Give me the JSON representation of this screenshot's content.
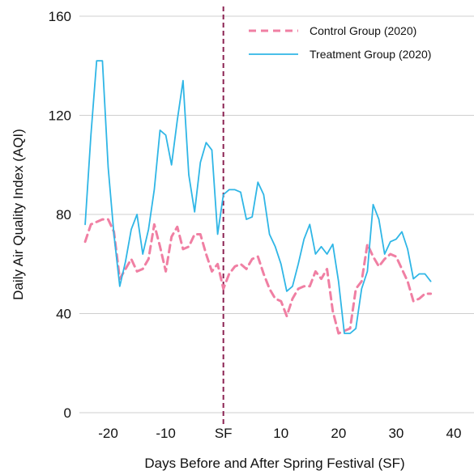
{
  "chart_data": {
    "type": "line",
    "title": "",
    "xlabel": "Days Before and After Spring Festival (SF)",
    "ylabel": "Daily Air Quality Index (AQI)",
    "xlim": [
      -25,
      40
    ],
    "ylim": [
      0,
      160
    ],
    "xticks": [
      -20,
      -10,
      0,
      10,
      20,
      30,
      40
    ],
    "xtick_labels": [
      "-20",
      "-10",
      "SF",
      "10",
      "20",
      "30",
      "40"
    ],
    "yticks": [
      0,
      40,
      80,
      120,
      160
    ],
    "ytick_labels": [
      "0",
      "40",
      "80",
      "120",
      "160"
    ],
    "grid": "horizontal",
    "legend_position": "top-right",
    "vline": {
      "x": 0,
      "color": "#8b2252",
      "style": "dashed"
    },
    "x": [
      -24,
      -23,
      -22,
      -21,
      -20,
      -19,
      -18,
      -17,
      -16,
      -15,
      -14,
      -13,
      -12,
      -11,
      -10,
      -9,
      -8,
      -7,
      -6,
      -5,
      -4,
      -3,
      -2,
      -1,
      0,
      1,
      2,
      3,
      4,
      5,
      6,
      7,
      8,
      9,
      10,
      11,
      12,
      13,
      14,
      15,
      16,
      17,
      18,
      19,
      20,
      21,
      22,
      23,
      24,
      25,
      26,
      27,
      28,
      29,
      30,
      31,
      32,
      33,
      34,
      35,
      36
    ],
    "series": [
      {
        "name": "Control Group (2020)",
        "color": "#f07fa3",
        "style": "dashed",
        "values": [
          69,
          76,
          77,
          78,
          78,
          73,
          54,
          58,
          62,
          57,
          58,
          62,
          76,
          67,
          57,
          71,
          75,
          66,
          67,
          72,
          72,
          64,
          57,
          60,
          50,
          56,
          59,
          60,
          58,
          62,
          63,
          56,
          50,
          46,
          45,
          39,
          46,
          50,
          51,
          51,
          57,
          54,
          58,
          41,
          32,
          33,
          34,
          50,
          53,
          68,
          63,
          59,
          62,
          64,
          63,
          58,
          53,
          45,
          46,
          48,
          48
        ]
      },
      {
        "name": "Treatment Group (2020)",
        "color": "#2fb6e6",
        "style": "solid",
        "values": [
          76,
          112,
          142,
          142,
          99,
          72,
          51,
          61,
          74,
          80,
          64,
          74,
          90,
          114,
          112,
          100,
          118,
          134,
          96,
          81,
          101,
          109,
          106,
          72,
          88,
          90,
          90,
          89,
          78,
          79,
          93,
          88,
          72,
          67,
          60,
          49,
          51,
          60,
          70,
          76,
          64,
          67,
          64,
          68,
          53,
          32,
          32,
          34,
          50,
          57,
          84,
          78,
          64,
          69,
          70,
          73,
          66,
          54,
          56,
          56,
          53
        ]
      }
    ]
  }
}
